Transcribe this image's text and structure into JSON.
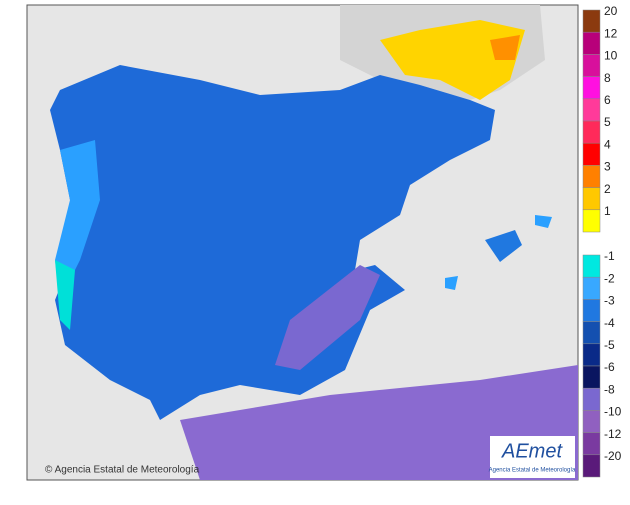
{
  "map": {
    "credit": "© Agencia Estatal de Meteorología",
    "logo": {
      "name": "AEmet",
      "subtitle": "Agencia Estatal de Meteorología"
    }
  },
  "legend": {
    "upper": [
      {
        "label": 20,
        "color": "#8b3a0f"
      },
      {
        "label": 12,
        "color": "#b8007a"
      },
      {
        "label": 10,
        "color": "#d8109c"
      },
      {
        "label": 8,
        "color": "#ff10e0"
      },
      {
        "label": 6,
        "color": "#ff3a9a"
      },
      {
        "label": 5,
        "color": "#ff2a5a"
      },
      {
        "label": 4,
        "color": "#ff0000"
      },
      {
        "label": 3,
        "color": "#ff8000"
      },
      {
        "label": 2,
        "color": "#ffc800"
      },
      {
        "label": 1,
        "color": "#ffff00"
      }
    ],
    "lower": [
      {
        "label": -1,
        "color": "#00e8e0"
      },
      {
        "label": -2,
        "color": "#38a8ff"
      },
      {
        "label": -3,
        "color": "#2078e0"
      },
      {
        "label": -4,
        "color": "#1450b0"
      },
      {
        "label": -5,
        "color": "#0a2a88"
      },
      {
        "label": -6,
        "color": "#0a1560"
      },
      {
        "label": -8,
        "color": "#7a68d0"
      },
      {
        "label": -10,
        "color": "#9060c0"
      },
      {
        "label": -12,
        "color": "#7a3aa0"
      },
      {
        "label": -20,
        "color": "#5a1a7a"
      }
    ]
  }
}
